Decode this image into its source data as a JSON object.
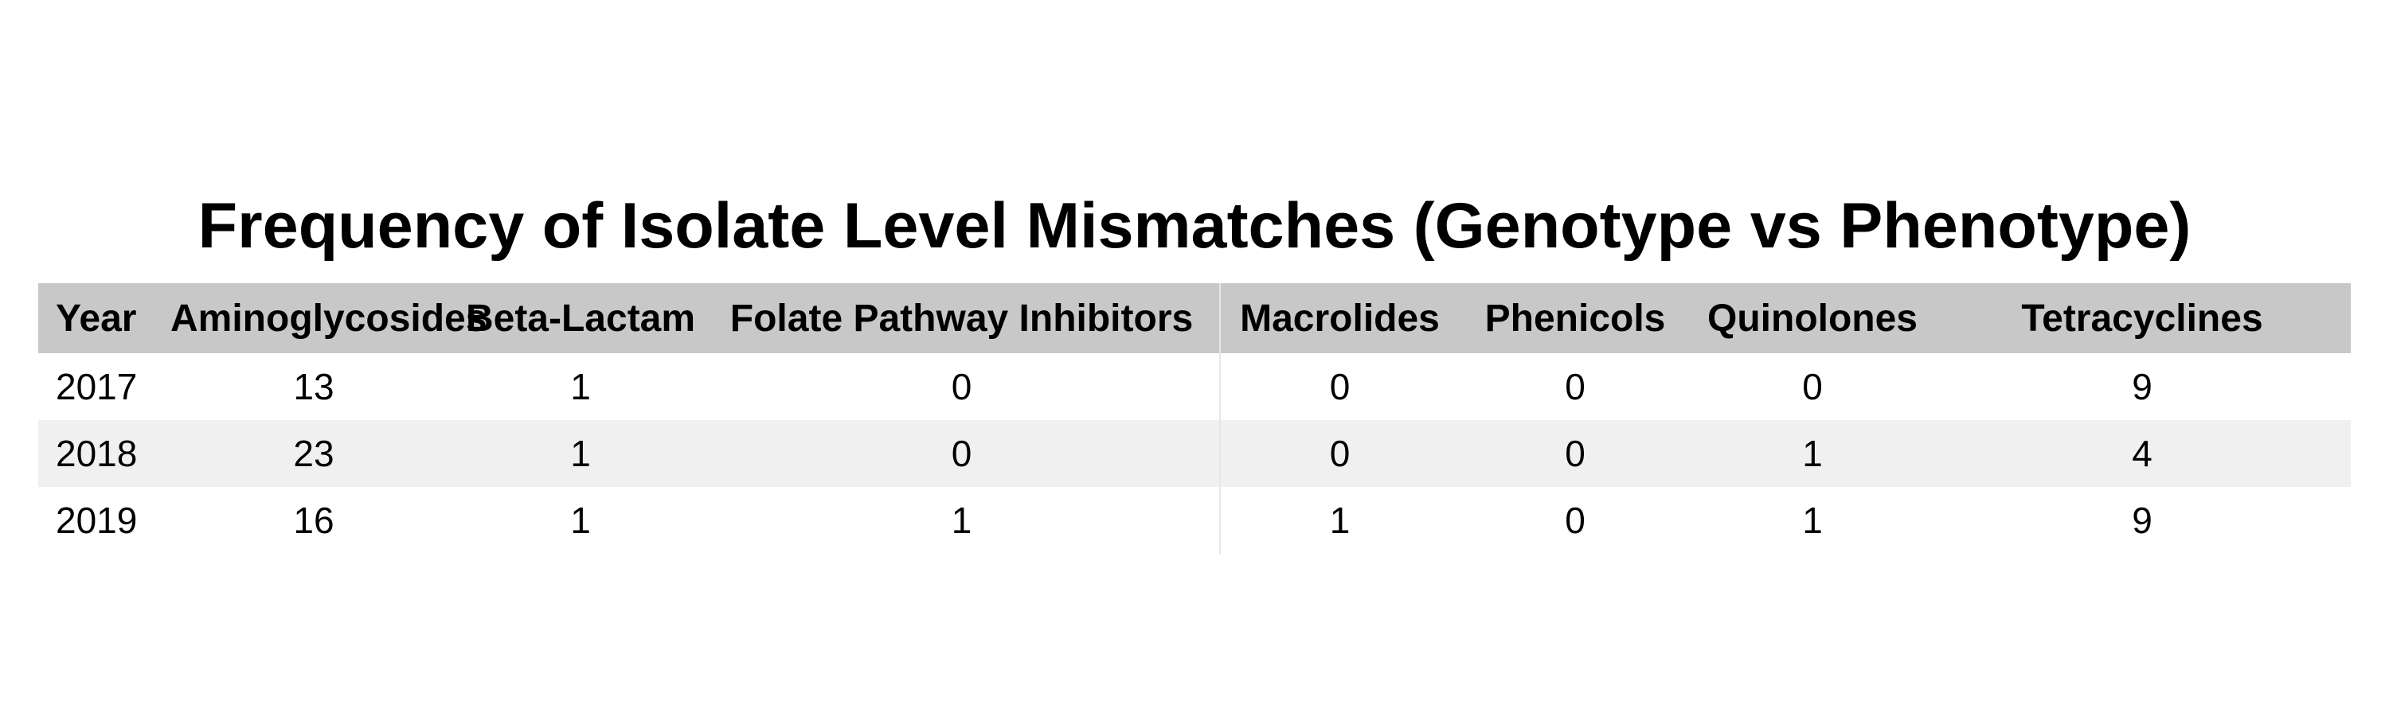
{
  "chart_data": {
    "type": "table",
    "title": "Frequency of Isolate Level Mismatches (Genotype vs Phenotype)",
    "columns": [
      "Year",
      "Aminoglycosides",
      "Beta-Lactam",
      "Folate Pathway Inhibitors",
      "Macrolides",
      "Phenicols",
      "Quinolones",
      "Tetracyclines"
    ],
    "rows": [
      [
        "2017",
        "13",
        "1",
        "0",
        "0",
        "0",
        "0",
        "9"
      ],
      [
        "2018",
        "23",
        "1",
        "0",
        "0",
        "0",
        "1",
        "4"
      ],
      [
        "2019",
        "16",
        "1",
        "1",
        "1",
        "0",
        "1",
        "9"
      ]
    ],
    "colors": {
      "header_background": "#c8c8c8",
      "stripe_background": "#f0f0f0",
      "text": "#000000"
    }
  }
}
